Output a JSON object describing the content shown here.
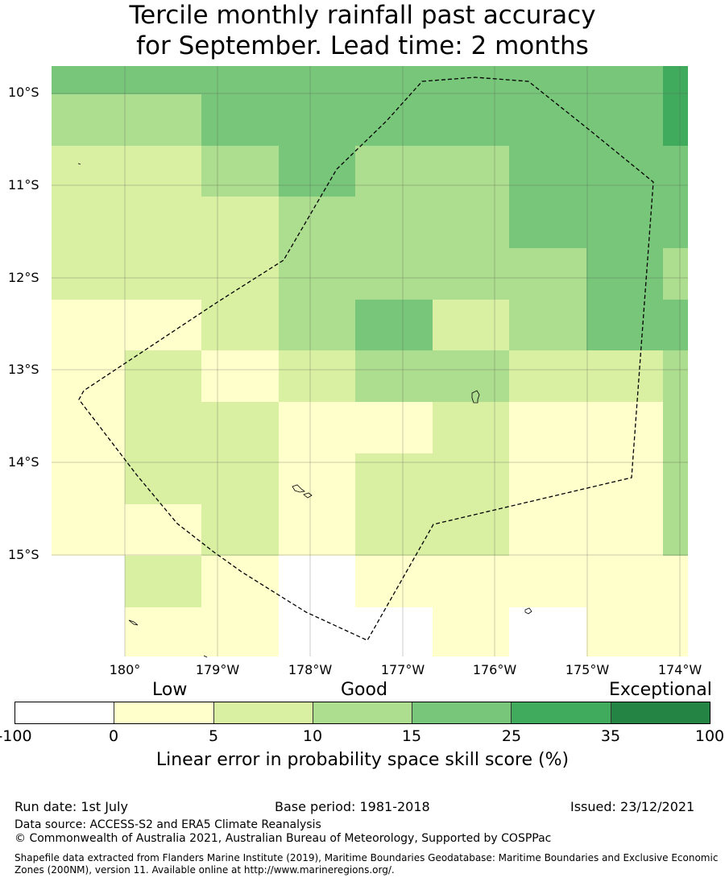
{
  "title_line1": "Tercile monthly rainfall past accuracy",
  "title_line2": "for September. Lead time: 2 months",
  "lat_labels": [
    "10°S",
    "11°S",
    "12°S",
    "13°S",
    "14°S",
    "15°S"
  ],
  "lon_labels": [
    "180°",
    "179°W",
    "178°W",
    "177°W",
    "176°W",
    "175°W",
    "174°W"
  ],
  "categories": {
    "low": "Low",
    "good": "Good",
    "exceptional": "Exceptional"
  },
  "colorbar": {
    "ticks": [
      "-100",
      "0",
      "5",
      "10",
      "15",
      "25",
      "35",
      "100"
    ],
    "colors": [
      "#ffffff",
      "#ffffcc",
      "#d9f0a3",
      "#addd8e",
      "#78c679",
      "#41ab5d",
      "#238443"
    ],
    "label": "Linear error in probability space skill score (%)"
  },
  "footer": {
    "run_date": "Run date: 1st July",
    "base_period": "Base period: 1981-2018",
    "issued": "Issued: 23/12/2021",
    "data_source": "Data source: ACCESS-S2 and ERA5 Climate Reanalysis",
    "copyright": "© Commonwealth of Australia 2021, Australian Bureau of Meteorology, Supported by COSPPac",
    "shapefile_line1": "Shapefile data extracted from Flanders Marine Institute (2019), Maritime Boundaries Geodatabase: Maritime Boundaries and Exclusive Economic",
    "shapefile_line2": "Zones (200NM), version 11. Available online at http://www.marineregions.org/."
  },
  "grid_classes": [
    [
      4,
      4,
      4,
      4,
      4,
      4,
      4,
      4,
      5
    ],
    [
      3,
      3,
      4,
      4,
      4,
      4,
      4,
      4,
      5
    ],
    [
      2,
      2,
      3,
      4,
      3,
      3,
      4,
      4,
      4
    ],
    [
      2,
      2,
      2,
      3,
      3,
      3,
      4,
      4,
      4
    ],
    [
      2,
      2,
      2,
      3,
      3,
      3,
      3,
      4,
      3
    ],
    [
      1,
      1,
      2,
      3,
      4,
      2,
      3,
      4,
      4
    ],
    [
      1,
      2,
      1,
      2,
      3,
      3,
      2,
      2,
      3
    ],
    [
      1,
      2,
      2,
      1,
      1,
      2,
      1,
      1,
      3
    ],
    [
      1,
      2,
      2,
      1,
      2,
      2,
      1,
      1,
      3
    ],
    [
      1,
      1,
      2,
      1,
      2,
      2,
      1,
      1,
      3
    ],
    [
      0,
      2,
      1,
      0,
      1,
      1,
      1,
      1,
      1
    ],
    [
      0,
      1,
      1,
      0,
      0,
      1,
      0,
      1,
      1
    ]
  ]
}
